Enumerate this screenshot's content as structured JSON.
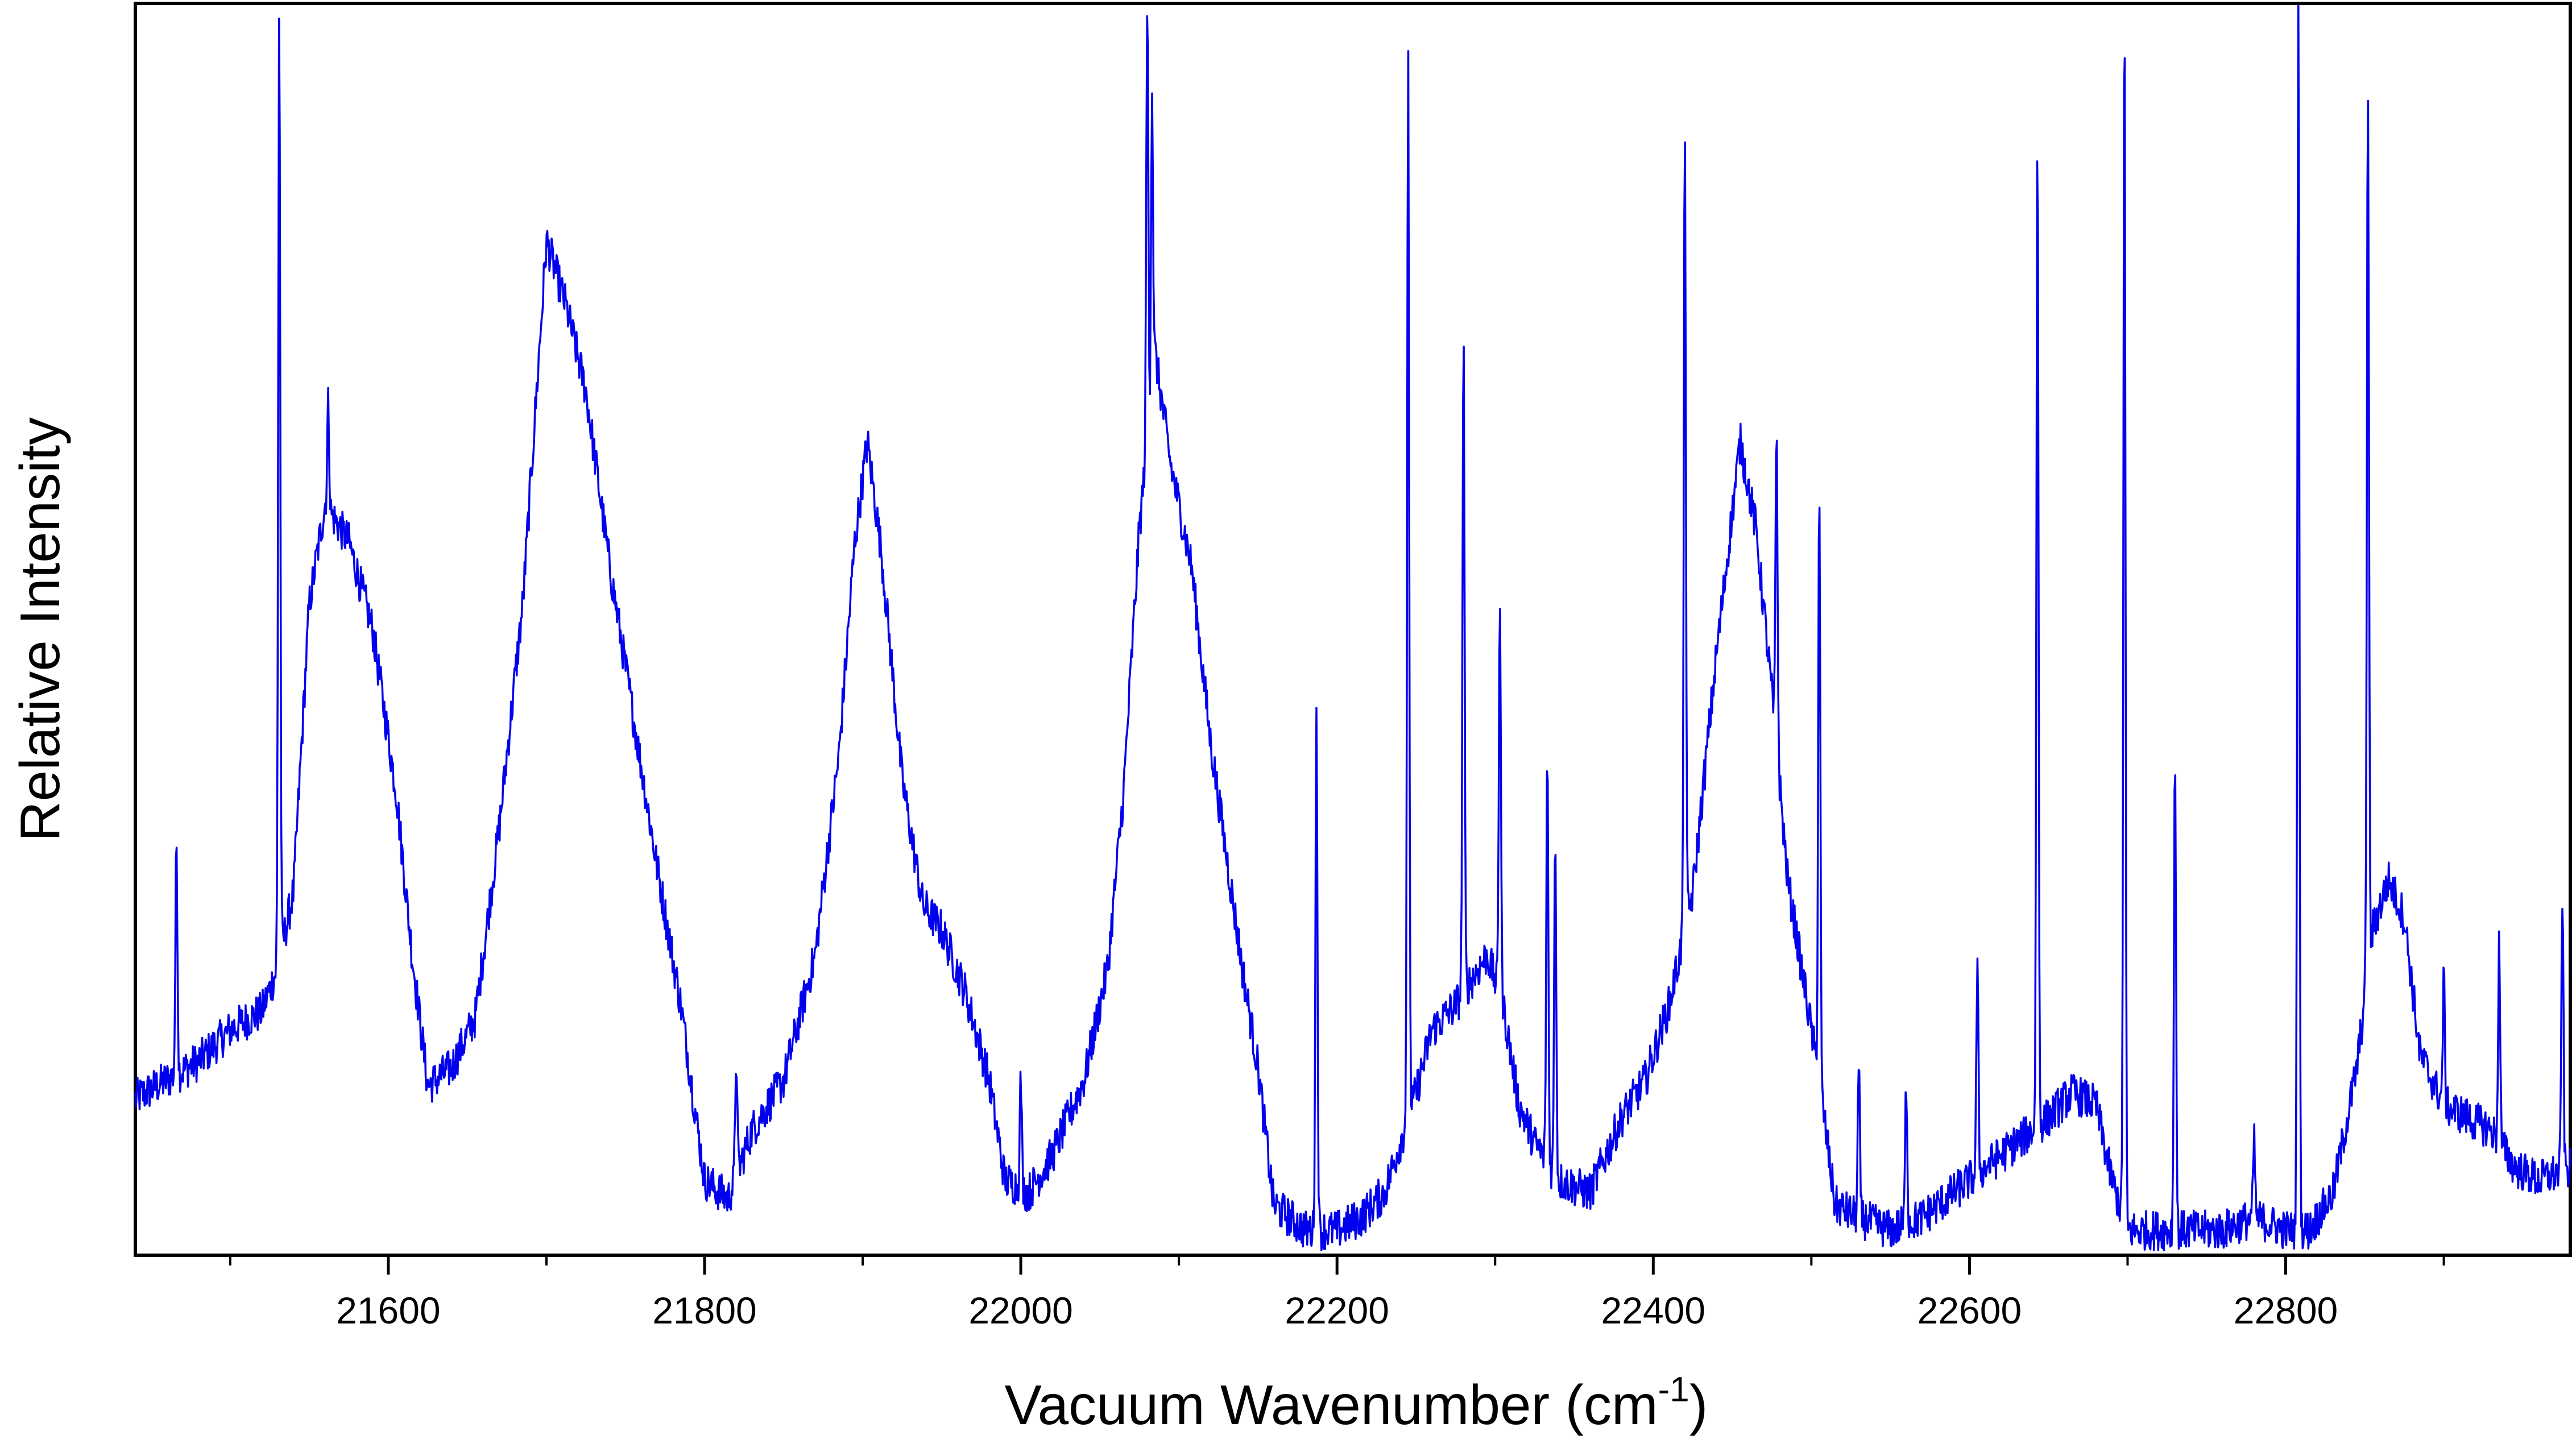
{
  "chart_data": {
    "type": "line",
    "title": "",
    "xlabel": "Vacuum Wavenumber (cm",
    "xlabel_sup": "-1",
    "xlabel_close": ")",
    "ylabel": "Relative Intensity",
    "xlim": [
      21440,
      22980
    ],
    "ylim": [
      0,
      100
    ],
    "x_ticks": [
      {
        "value": 21600,
        "label": "21600"
      },
      {
        "value": 21800,
        "label": "21800"
      },
      {
        "value": 22000,
        "label": "22000"
      },
      {
        "value": 22200,
        "label": "22200"
      },
      {
        "value": 22400,
        "label": "22400"
      },
      {
        "value": 22600,
        "label": "22600"
      },
      {
        "value": 22800,
        "label": "22800"
      }
    ],
    "x_minor_ticks": [
      21500,
      21700,
      21900,
      22100,
      22300,
      22500,
      22700,
      22900
    ],
    "y_ticks_shown": false,
    "grid": false,
    "legend": "none",
    "series": [
      {
        "color": "#0000ee",
        "baseline": [
          [
            21440,
            12.5
          ],
          [
            21460,
            14
          ],
          [
            21480,
            15.5
          ],
          [
            21500,
            18
          ],
          [
            21520,
            19.5
          ],
          [
            21530,
            23
          ],
          [
            21540,
            29
          ],
          [
            21550,
            52
          ],
          [
            21560,
            60
          ],
          [
            21575,
            57
          ],
          [
            21590,
            50
          ],
          [
            21605,
            37
          ],
          [
            21615,
            24
          ],
          [
            21625,
            13.5
          ],
          [
            21640,
            15
          ],
          [
            21655,
            19
          ],
          [
            21670,
            34
          ],
          [
            21685,
            52
          ],
          [
            21700,
            81
          ],
          [
            21712,
            76
          ],
          [
            21725,
            69
          ],
          [
            21740,
            55
          ],
          [
            21755,
            43
          ],
          [
            21770,
            31
          ],
          [
            21785,
            20
          ],
          [
            21800,
            6
          ],
          [
            21815,
            4.5
          ],
          [
            21830,
            10
          ],
          [
            21850,
            14
          ],
          [
            21870,
            24
          ],
          [
            21885,
            40
          ],
          [
            21895,
            57
          ],
          [
            21903,
            65
          ],
          [
            21912,
            56
          ],
          [
            21925,
            38
          ],
          [
            21938,
            28
          ],
          [
            21950,
            26
          ],
          [
            21965,
            21
          ],
          [
            21980,
            14
          ],
          [
            21990,
            6
          ],
          [
            22005,
            5
          ],
          [
            22020,
            8
          ],
          [
            22040,
            14
          ],
          [
            22055,
            23
          ],
          [
            22065,
            37
          ],
          [
            22075,
            58
          ],
          [
            22085,
            72
          ],
          [
            22095,
            63
          ],
          [
            22108,
            55
          ],
          [
            22120,
            41
          ],
          [
            22130,
            32
          ],
          [
            22140,
            23
          ],
          [
            22150,
            15
          ],
          [
            22160,
            4
          ],
          [
            22180,
            2
          ],
          [
            22200,
            2
          ],
          [
            22215,
            3
          ],
          [
            22230,
            5
          ],
          [
            22240,
            9
          ],
          [
            22250,
            13
          ],
          [
            22260,
            18
          ],
          [
            22275,
            20
          ],
          [
            22285,
            22
          ],
          [
            22295,
            24
          ],
          [
            22305,
            20
          ],
          [
            22315,
            12
          ],
          [
            22325,
            9
          ],
          [
            22340,
            6
          ],
          [
            22360,
            5
          ],
          [
            22370,
            8
          ],
          [
            22380,
            11
          ],
          [
            22395,
            14
          ],
          [
            22410,
            20
          ],
          [
            22425,
            29
          ],
          [
            22440,
            48
          ],
          [
            22455,
            65
          ],
          [
            22465,
            58
          ],
          [
            22475,
            45
          ],
          [
            22485,
            30
          ],
          [
            22495,
            22
          ],
          [
            22505,
            14
          ],
          [
            22515,
            4
          ],
          [
            22530,
            3
          ],
          [
            22550,
            2
          ],
          [
            22570,
            3
          ],
          [
            22590,
            5
          ],
          [
            22610,
            7
          ],
          [
            22630,
            9
          ],
          [
            22650,
            11
          ],
          [
            22665,
            13
          ],
          [
            22680,
            12
          ],
          [
            22690,
            6
          ],
          [
            22700,
            2
          ],
          [
            22720,
            2
          ],
          [
            22740,
            2
          ],
          [
            22760,
            2
          ],
          [
            22780,
            3
          ],
          [
            22800,
            2
          ],
          [
            22815,
            2
          ],
          [
            22830,
            5
          ],
          [
            22845,
            15
          ],
          [
            22855,
            26
          ],
          [
            22865,
            30
          ],
          [
            22875,
            27
          ],
          [
            22885,
            16
          ],
          [
            22900,
            12
          ],
          [
            22915,
            11
          ],
          [
            22930,
            10
          ],
          [
            22945,
            7
          ],
          [
            22960,
            6
          ],
          [
            22980,
            7
          ]
        ],
        "peaks": [
          [
            21466,
            33
          ],
          [
            21531,
            100
          ],
          [
            21562,
            68
          ],
          [
            22080,
            100
          ],
          [
            22083,
            93
          ],
          [
            22187,
            43
          ],
          [
            22245,
            95
          ],
          [
            22280,
            74
          ],
          [
            22303,
            53
          ],
          [
            22333,
            40
          ],
          [
            22338,
            34
          ],
          [
            22420,
            91
          ],
          [
            22478,
            66
          ],
          [
            22505,
            62
          ],
          [
            22605,
            23
          ],
          [
            22643,
            90
          ],
          [
            22698,
            100
          ],
          [
            22730,
            41
          ],
          [
            22808,
            100
          ],
          [
            22852,
            94
          ],
          [
            22900,
            22
          ],
          [
            22935,
            25
          ],
          [
            22975,
            29
          ],
          [
            21820,
            16
          ],
          [
            22000,
            14
          ],
          [
            22530,
            15
          ],
          [
            22560,
            14
          ],
          [
            22780,
            9
          ]
        ]
      }
    ]
  }
}
